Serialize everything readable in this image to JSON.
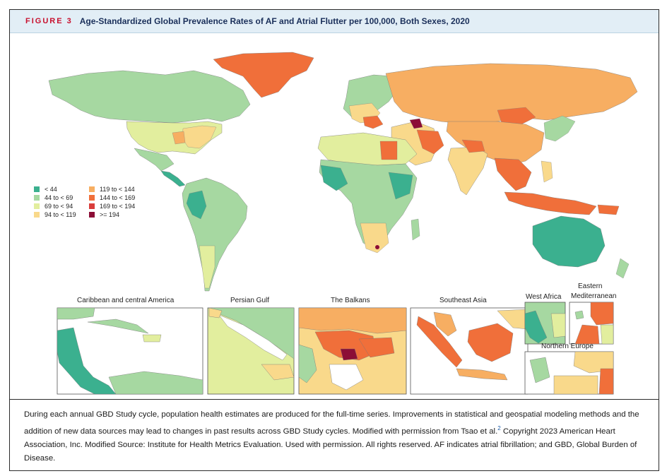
{
  "figure": {
    "label": "FIGURE 3",
    "title": "Age-Standardized Global Prevalence Rates of AF and Atrial Flutter per 100,000, Both Sexes, 2020"
  },
  "legend": {
    "items": [
      {
        "label": "< 44",
        "color": "#3bb08f"
      },
      {
        "label": "44 to < 69",
        "color": "#a6d8a1"
      },
      {
        "label": "69 to < 94",
        "color": "#e2ee9e"
      },
      {
        "label": "94 to < 119",
        "color": "#f9d98b"
      },
      {
        "label": "119 to < 144",
        "color": "#f7ae62"
      },
      {
        "label": "144 to < 169",
        "color": "#f06f3a"
      },
      {
        "label": "169 to < 194",
        "color": "#d93d3b"
      },
      {
        "label": ">= 194",
        "color": "#8c0d36"
      }
    ]
  },
  "insets": {
    "caribbean": "Caribbean and central America",
    "persian_gulf": "Persian Gulf",
    "balkans": "The Balkans",
    "southeast_asia": "Southeast Asia",
    "west_africa": "West Africa",
    "eastern_med_1": "Eastern",
    "eastern_med_2": "Mediterranean",
    "northern_europe": "Northern Europe"
  },
  "caption": {
    "text_before_ref": "During each annual GBD Study cycle, population health estimates are produced for the full-time series. Improvements in statistical and geospatial modeling methods and the addition of new data sources may lead to changes in past results across GBD Study cycles. Modified with permission from Tsao et al.",
    "ref": "2",
    "text_after_ref": " Copyright 2023 American Heart Association, Inc. Modified Source: Institute for Health Metrics Evaluation. Used with permission. All rights reserved. AF indicates atrial fibrillation; and GBD, Global Burden of Disease."
  }
}
